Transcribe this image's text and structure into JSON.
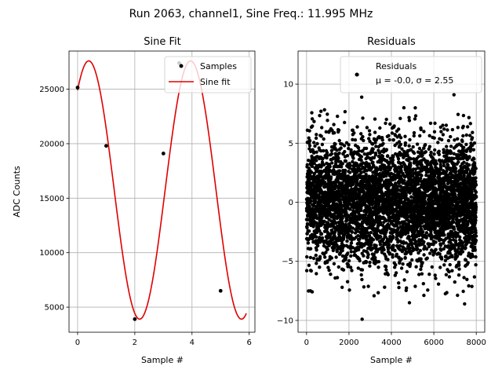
{
  "suptitle": "Run 2063, channel1, Sine Freq.: 11.995 MHz",
  "chart_data": [
    {
      "type": "line",
      "title": "Sine Fit",
      "xlabel": "Sample #",
      "ylabel": "ADC Counts",
      "xlim": [
        -0.3,
        6.2
      ],
      "ylim": [
        2700,
        28500
      ],
      "xticks": [
        0,
        2,
        4,
        6
      ],
      "xtick_labels": [
        "0",
        "2",
        "4",
        "6"
      ],
      "yticks": [
        5000,
        10000,
        15000,
        20000,
        25000
      ],
      "ytick_labels": [
        "5000",
        "10000",
        "15000",
        "20000",
        "25000"
      ],
      "grid": true,
      "legend": [
        "Samples",
        "Sine fit"
      ],
      "legend_position": "top-right",
      "samples": {
        "x": [
          0,
          1,
          2,
          3,
          3.55,
          5
        ],
        "y": [
          25150,
          19800,
          3900,
          19100,
          27400,
          6500
        ]
      },
      "fit": {
        "offset": 15750,
        "amplitude": 11850,
        "period": 3.56,
        "phase_x": 0.39,
        "x_range": [
          0,
          5.9
        ]
      },
      "colors": {
        "fit": "#e00000",
        "samples": "#000000"
      }
    },
    {
      "type": "scatter",
      "title": "Residuals",
      "xlabel": "Sample #",
      "ylabel": "",
      "xlim": [
        -400,
        8400
      ],
      "ylim": [
        -11,
        12.8
      ],
      "xticks": [
        0,
        2000,
        4000,
        6000,
        8000
      ],
      "xtick_labels": [
        "0",
        "2000",
        "4000",
        "6000",
        "8000"
      ],
      "yticks": [
        -10,
        -5,
        0,
        5,
        10
      ],
      "ytick_labels": [
        "−10",
        "−5",
        "0",
        "5",
        "10"
      ],
      "grid": true,
      "legend": [
        "Residuals",
        "μ = -0.0, σ = 2.55"
      ],
      "legend_position": "top-right",
      "n_points": 8000,
      "mean": 0.0,
      "sigma": 2.55,
      "outliers": [
        {
          "x": 2420,
          "y": 10.8
        },
        {
          "x": 2620,
          "y": -9.9
        },
        {
          "x": 2600,
          "y": 8.9
        },
        {
          "x": 6950,
          "y": 9.1
        },
        {
          "x": 4850,
          "y": -8.5
        },
        {
          "x": 7450,
          "y": -8.6
        },
        {
          "x": 180,
          "y": -7.5
        },
        {
          "x": 40,
          "y": 6.1
        },
        {
          "x": 680,
          "y": 7.7
        }
      ],
      "colors": {
        "points": "#000000"
      }
    }
  ]
}
